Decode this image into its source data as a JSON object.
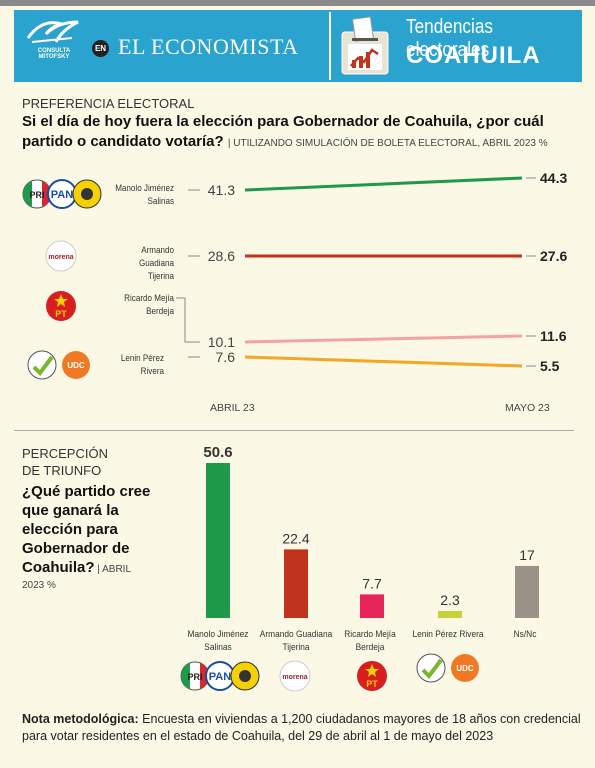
{
  "header": {
    "logo_text": "CONSULTA MITOFSKY",
    "en_badge": "EN",
    "brand": "EL ECONOMISTA",
    "title_line1": "Tendencias electorales",
    "title_line2": "COAHUILA"
  },
  "section1": {
    "kicker": "PREFERENCIA ELECTORAL",
    "question": "Si el día de hoy fuera la elección para Gobernador de Coahuila, ¿por cuál partido o candidato votaría?",
    "subnote": "UTILIZANDO SIMULACIÓN DE BOLETA ELECTORAL, ABRIL 2023 %"
  },
  "section2": {
    "kicker_line1": "PERCEPCIÓN",
    "kicker_line2": "DE TRIUNFO",
    "question_lines": [
      "¿Qué partido cree",
      "que ganará la",
      "elección para",
      "Gobernador de",
      "Coahuila?"
    ],
    "subnote_a": "ABRIL",
    "subnote_b": "2023 %"
  },
  "party_logos": {
    "pri": "PRI",
    "pan": "PAN",
    "morena": "morena",
    "pt": "PT",
    "udc": "UDC"
  },
  "note": {
    "label": "Nota metodológica:",
    "text": "Encuesta en viviendas a 1,200 ciudadanos mayores de 18 años  con credencial para votar residentes en el estado de Coahuila, del 29 de abril al 1 de mayo del 2023"
  },
  "chart_data": [
    {
      "type": "line",
      "x": [
        "ABRIL 23",
        "MAYO 23"
      ],
      "series": [
        {
          "name": "Manolo Jiménez Salinas",
          "values": [
            41.3,
            44.3
          ],
          "color": "#1e9a4a"
        },
        {
          "name": "Armando Guadiana Tijerina",
          "values": [
            28.6,
            27.6
          ],
          "color": "#c0341d"
        },
        {
          "name": "Ricardo Mejía Berdeja",
          "values": [
            10.1,
            11.6
          ],
          "color": "#f4a3a3"
        },
        {
          "name": "Lenin Pérez Rivera",
          "values": [
            7.6,
            5.5
          ],
          "color": "#f5a623"
        }
      ]
    },
    {
      "type": "bar",
      "categories": [
        "Manolo Jiménez Salinas",
        "Armando Guadiana Tijerina",
        "Ricardo Mejía Berdeja",
        "Lenin Pérez Rivera",
        "Ns/Nc"
      ],
      "values": [
        50.6,
        22.4,
        7.7,
        2.3,
        17
      ],
      "colors": [
        "#1e9a4a",
        "#c0341d",
        "#e8245a",
        "#c8d23a",
        "#9a9288"
      ]
    }
  ]
}
